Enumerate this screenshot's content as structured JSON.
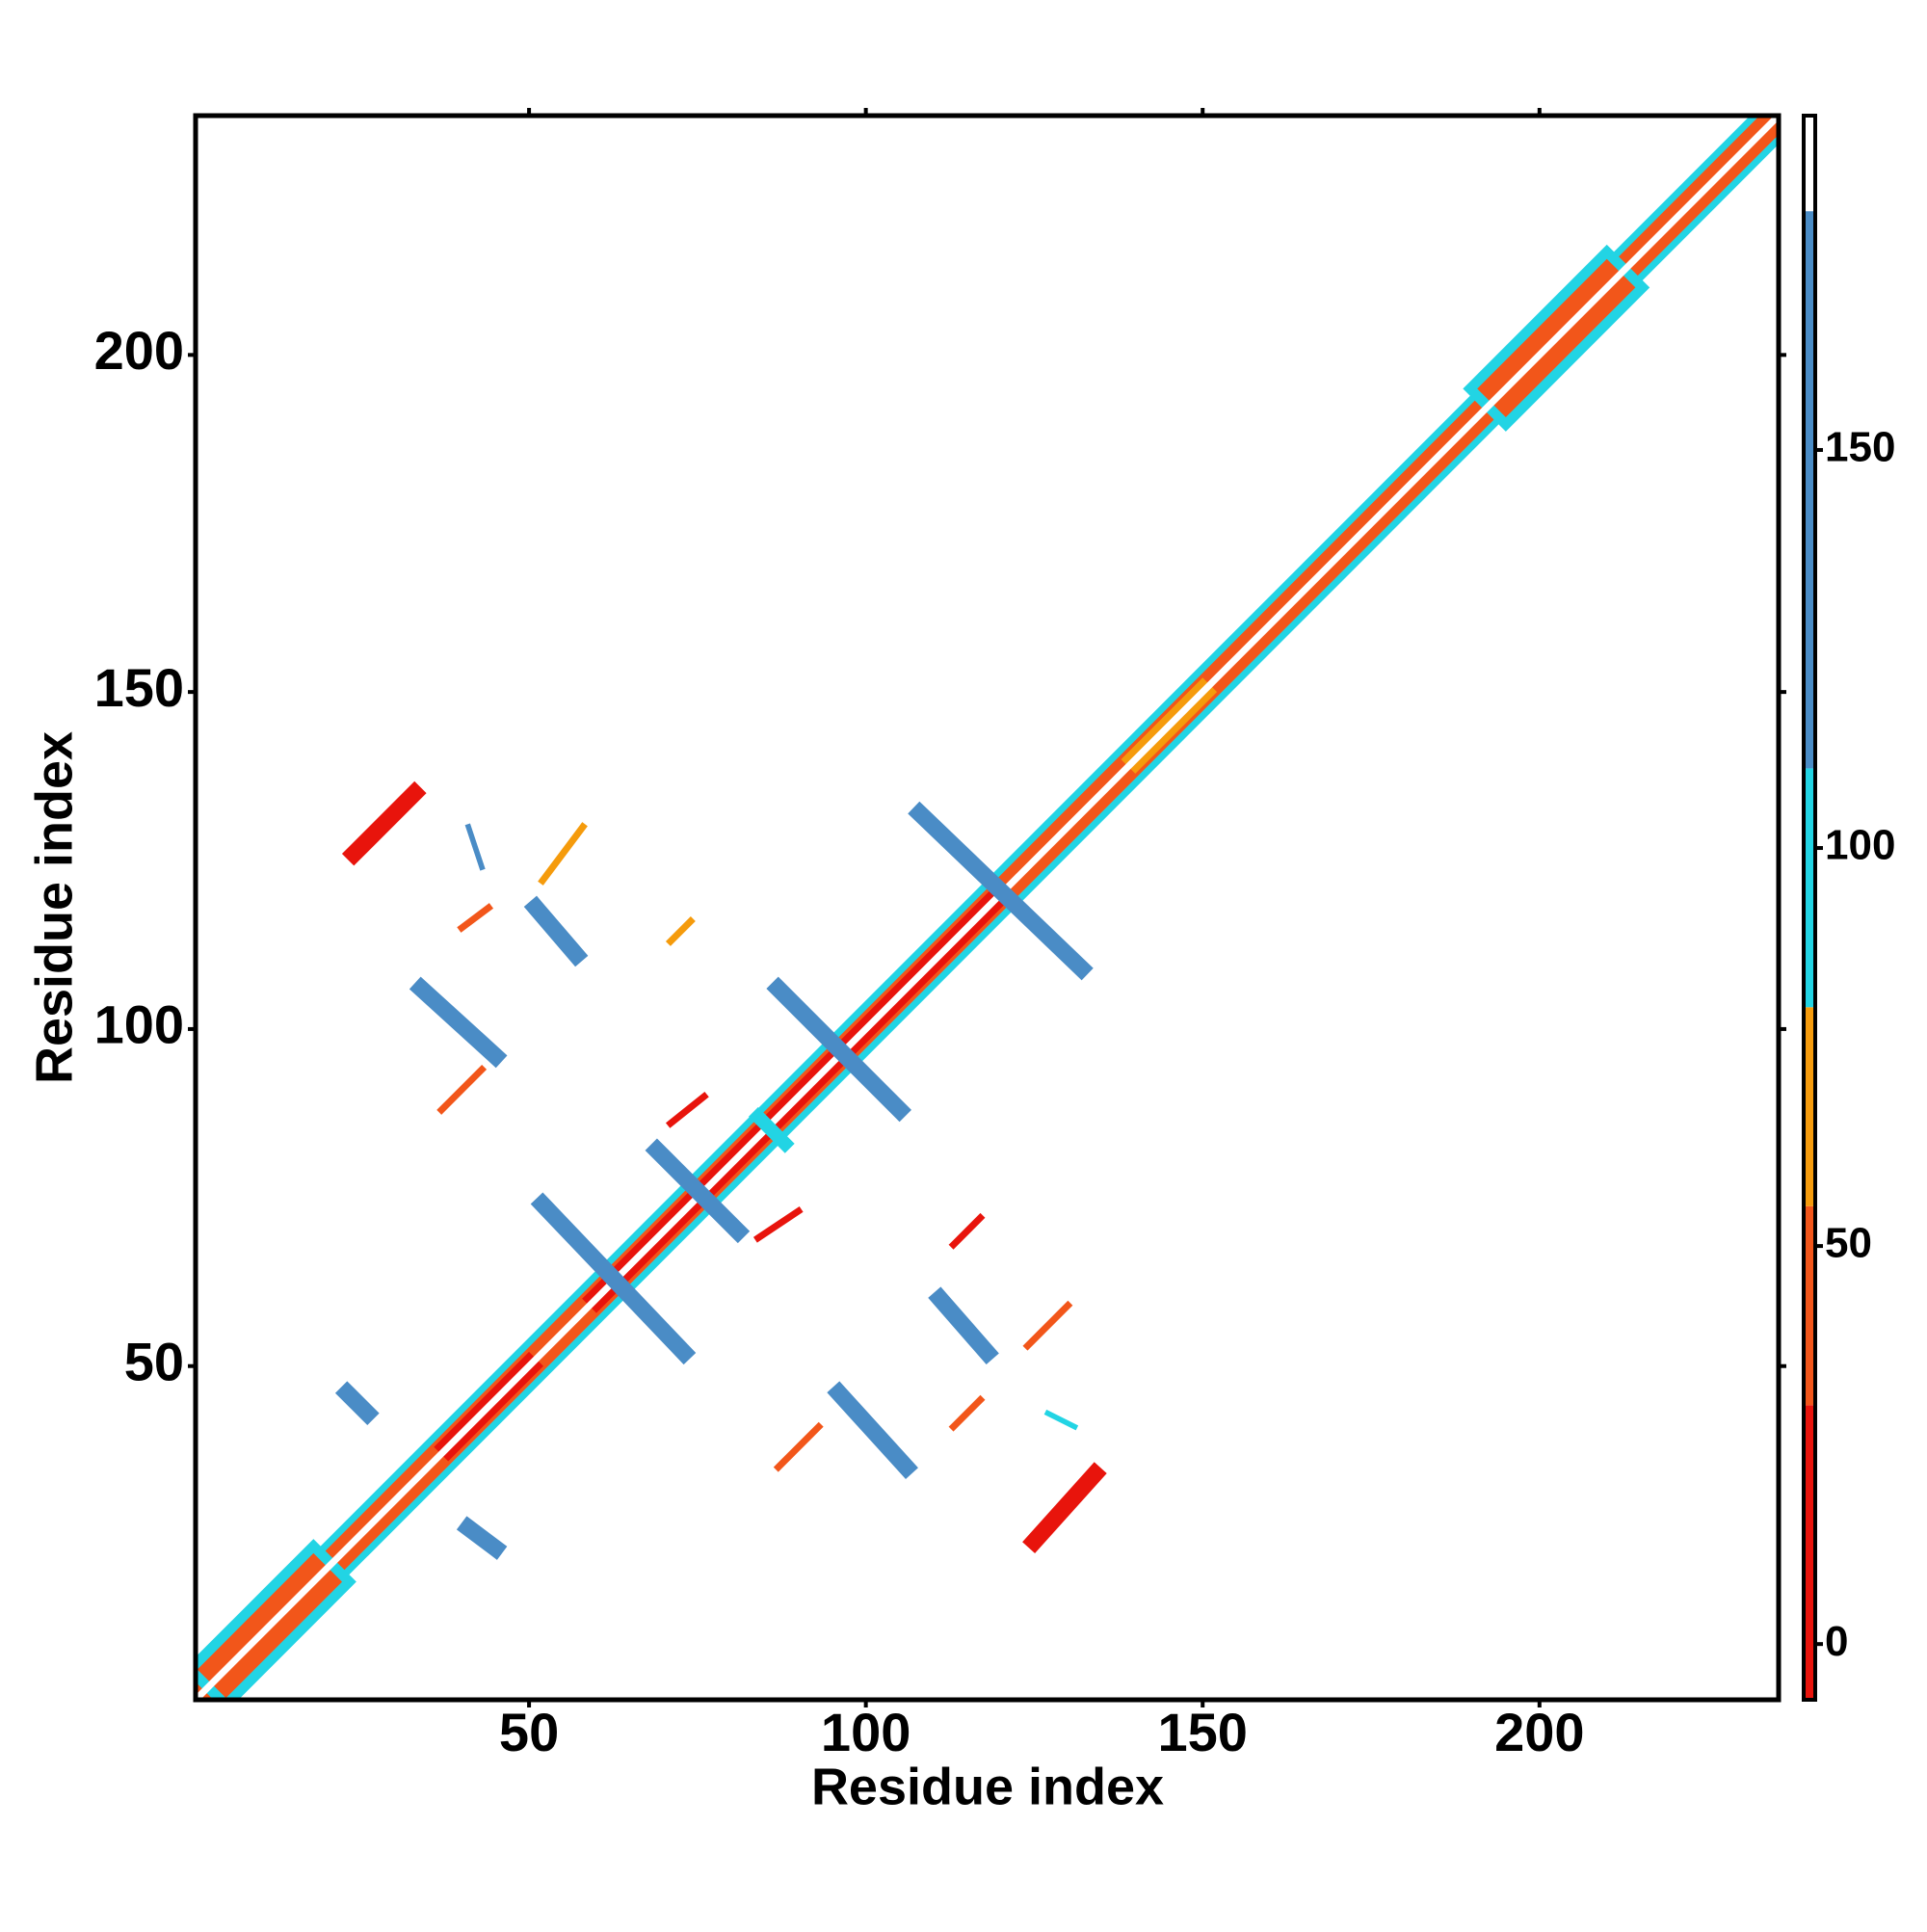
{
  "chart_data": {
    "type": "contact-map",
    "xlabel": "Residue index",
    "ylabel": "Residue index",
    "xlim": [
      0.5,
      235.5
    ],
    "ylim": [
      0.5,
      235.5
    ],
    "xticks": [
      50,
      100,
      150,
      200
    ],
    "yticks": [
      50,
      100,
      150,
      200
    ],
    "colorbar": {
      "lim": [
        -7,
        192
      ],
      "ticks": [
        0,
        50,
        100,
        150
      ],
      "bounds": [
        -7,
        30,
        55,
        80,
        110,
        180,
        192
      ],
      "colors": [
        "#e8140c",
        "#f2561a",
        "#f59b0c",
        "#22d4e4",
        "#4a8cc6",
        "#ffffff"
      ]
    },
    "features": [
      {
        "x": [
          1,
          235
        ],
        "y": [
          1,
          235
        ],
        "value": 90,
        "width": 6
      },
      {
        "x": [
          1,
          235
        ],
        "y": [
          1,
          235
        ],
        "value": 40,
        "width": 4
      },
      {
        "x": [
          5,
          18
        ],
        "y": [
          5,
          18
        ],
        "value": 90,
        "width": 9
      },
      {
        "x": [
          195,
          210
        ],
        "y": [
          195,
          210
        ],
        "value": 90,
        "width": 9
      },
      {
        "x": [
          5,
          18
        ],
        "y": [
          5,
          18
        ],
        "value": 40,
        "width": 6
      },
      {
        "x": [
          195,
          210
        ],
        "y": [
          195,
          210
        ],
        "value": 40,
        "width": 6
      },
      {
        "x": [
          38,
          50
        ],
        "y": [
          38,
          50
        ],
        "value": 10,
        "width": 3
      },
      {
        "x": [
          60,
          120
        ],
        "y": [
          60,
          120
        ],
        "value": 10,
        "width": 3
      },
      {
        "x": [
          140,
          150
        ],
        "y": [
          140,
          150
        ],
        "value": 60,
        "width": 3
      },
      {
        "x": [
          1,
          235
        ],
        "y": [
          1,
          235
        ],
        "value": 185,
        "width": 1
      },
      {
        "x": [
          23,
          26
        ],
        "y": [
          46,
          43
        ],
        "value": 150,
        "width": 2.5
      },
      {
        "x": [
          41,
          45
        ],
        "y": [
          26,
          23
        ],
        "value": 150,
        "width": 2.5
      },
      {
        "x": [
          34,
          45
        ],
        "y": [
          106,
          96
        ],
        "value": 150,
        "width": 2.5
      },
      {
        "x": [
          96,
          106
        ],
        "y": [
          46,
          35
        ],
        "value": 150,
        "width": 2.5
      },
      {
        "x": [
          51,
          57
        ],
        "y": [
          118,
          111
        ],
        "value": 150,
        "width": 2.5
      },
      {
        "x": [
          111,
          118
        ],
        "y": [
          60,
          52
        ],
        "value": 150,
        "width": 2.5
      },
      {
        "x": [
          52,
          73
        ],
        "y": [
          74,
          52
        ],
        "value": 150,
        "width": 2.5
      },
      {
        "x": [
          69,
          81
        ],
        "y": [
          82,
          70
        ],
        "value": 150,
        "width": 2.5
      },
      {
        "x": [
          87,
          105
        ],
        "y": [
          106,
          88
        ],
        "value": 150,
        "width": 2.5
      },
      {
        "x": [
          108,
          132
        ],
        "y": [
          132,
          109
        ],
        "value": 150,
        "width": 2.5
      },
      {
        "x": [
          84,
          88
        ],
        "y": [
          87,
          83
        ],
        "value": 95,
        "width": 2
      },
      {
        "x": [
          41,
          43
        ],
        "y": [
          130,
          124
        ],
        "value": 150,
        "width": 0.8
      },
      {
        "x": [
          24,
          33
        ],
        "y": [
          126,
          135
        ],
        "value": 20,
        "width": 2.5
      },
      {
        "x": [
          125,
          134
        ],
        "y": [
          24,
          34
        ],
        "value": 20,
        "width": 2.5
      },
      {
        "x": [
          40,
          44
        ],
        "y": [
          115,
          118
        ],
        "value": 40,
        "width": 1
      },
      {
        "x": [
          37,
          43
        ],
        "y": [
          88,
          94
        ],
        "value": 40,
        "width": 1
      },
      {
        "x": [
          87,
          93
        ],
        "y": [
          35,
          41
        ],
        "value": 40,
        "width": 1
      },
      {
        "x": [
          71,
          74
        ],
        "y": [
          113,
          116
        ],
        "value": 60,
        "width": 1
      },
      {
        "x": [
          113,
          117
        ],
        "y": [
          68,
          72
        ],
        "value": 20,
        "width": 1
      },
      {
        "x": [
          71,
          76
        ],
        "y": [
          86,
          90
        ],
        "value": 20,
        "width": 1
      },
      {
        "x": [
          84,
          90
        ],
        "y": [
          69,
          73
        ],
        "value": 20,
        "width": 1
      },
      {
        "x": [
          52,
          58
        ],
        "y": [
          122,
          130
        ],
        "value": 60,
        "width": 1
      },
      {
        "x": [
          124,
          130
        ],
        "y": [
          53,
          59
        ],
        "value": 40,
        "width": 1
      },
      {
        "x": [
          113,
          117
        ],
        "y": [
          41,
          45
        ],
        "value": 40,
        "width": 1
      },
      {
        "x": [
          127,
          131
        ],
        "y": [
          43,
          41
        ],
        "value": 95,
        "width": 0.8
      }
    ]
  }
}
